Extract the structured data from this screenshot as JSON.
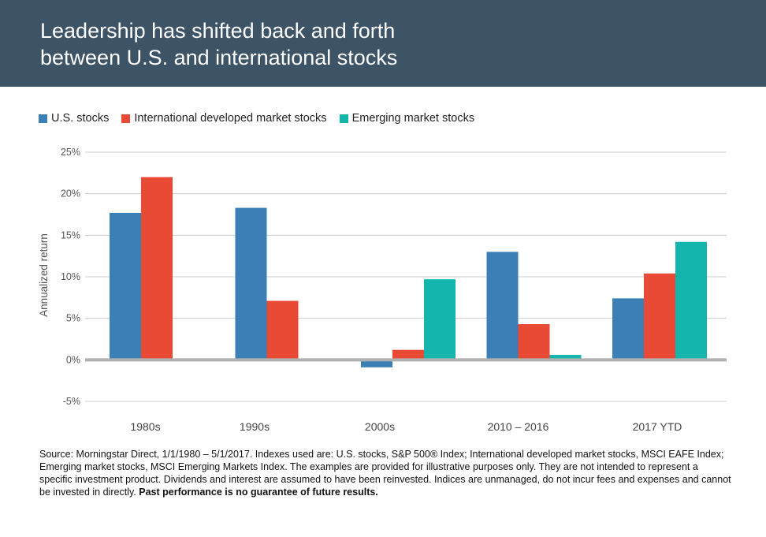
{
  "header": {
    "title_line1": "Leadership has shifted back and forth",
    "title_line2": "between U.S. and international stocks"
  },
  "colors": {
    "header_bg": "#3d5366",
    "us": "#3a7fb5",
    "intl": "#e84a35",
    "em": "#13b5ad",
    "grid": "#cccccc",
    "zero_line": "#b0b0b0"
  },
  "chart_data": {
    "type": "bar",
    "ylabel": "Annualized return",
    "ylim": [
      -5,
      25
    ],
    "yticks": [
      25,
      20,
      15,
      10,
      5,
      0,
      -5
    ],
    "ytick_labels": [
      "25%",
      "20%",
      "15%",
      "10%",
      "5%",
      "0%",
      "-5%"
    ],
    "categories": [
      "1980s",
      "1990s",
      "2000s",
      "2010 – 2016",
      "2017 YTD"
    ],
    "legend_position": "top-left",
    "grid": true,
    "series": [
      {
        "name": "U.S. stocks",
        "color": "#3a7fb5",
        "values": [
          17.7,
          18.3,
          -0.9,
          13.0,
          7.4
        ]
      },
      {
        "name": "International developed market stocks",
        "color": "#e84a35",
        "values": [
          22.0,
          7.1,
          1.2,
          4.3,
          10.4
        ]
      },
      {
        "name": "Emerging market stocks",
        "color": "#13b5ad",
        "values": [
          null,
          null,
          9.7,
          0.6,
          14.2
        ]
      }
    ]
  },
  "footnote": {
    "text": "Source: Morningstar Direct, 1/1/1980 – 5/1/2017. Indexes used are: U.S. stocks, S&P 500® Index; International developed market stocks, MSCI EAFE Index; Emerging market stocks, MSCI Emerging Markets Index. The examples are provided for illustrative purposes only. They are not intended to represent a specific investment product. Dividends and interest are assumed to have been reinvested. Indices are unmanaged, do not incur fees and expenses and cannot be invested in directly. ",
    "bold": "Past performance is no guarantee of future results."
  }
}
